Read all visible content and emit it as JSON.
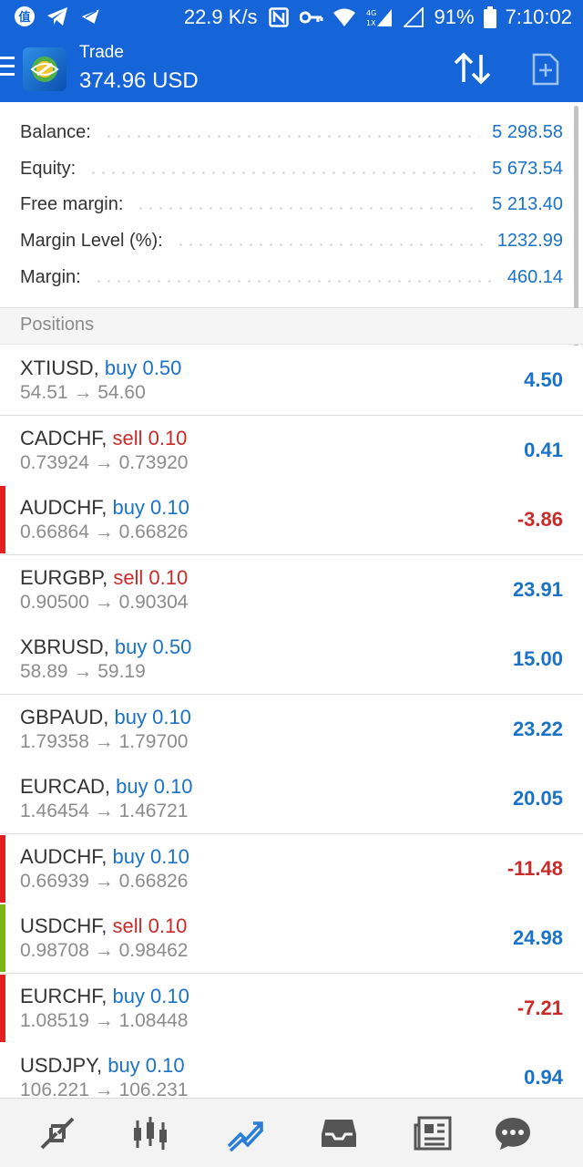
{
  "status_bar": {
    "speed": "22.9 K/s",
    "battery": "91%",
    "time": "7:10:02",
    "network_label_top": "4G",
    "network_label_bottom": "1X"
  },
  "app_bar": {
    "title": "Trade",
    "subtitle": "374.96 USD"
  },
  "summary": [
    {
      "label": "Balance:",
      "value": "5 298.58"
    },
    {
      "label": "Equity:",
      "value": "5 673.54"
    },
    {
      "label": "Free margin:",
      "value": "5 213.40"
    },
    {
      "label": "Margin Level (%):",
      "value": "1232.99"
    },
    {
      "label": "Margin:",
      "value": "460.14"
    }
  ],
  "positions_header": "Positions",
  "positions": [
    {
      "symbol": "XTIUSD,",
      "side": "buy 0.50",
      "prices": "54.51 → 54.60",
      "profit": "4.50"
    },
    {
      "symbol": "CADCHF,",
      "side": "sell 0.10",
      "prices": "0.73924 → 0.73920",
      "profit": "0.41"
    },
    {
      "symbol": "AUDCHF,",
      "side": "buy 0.10",
      "prices": "0.66864 → 0.66826",
      "profit": "-3.86"
    },
    {
      "symbol": "EURGBP,",
      "side": "sell 0.10",
      "prices": "0.90500 → 0.90304",
      "profit": "23.91"
    },
    {
      "symbol": "XBRUSD,",
      "side": "buy 0.50",
      "prices": "58.89 → 59.19",
      "profit": "15.00"
    },
    {
      "symbol": "GBPAUD,",
      "side": "buy 0.10",
      "prices": "1.79358 → 1.79700",
      "profit": "23.22"
    },
    {
      "symbol": "EURCAD,",
      "side": "buy 0.10",
      "prices": "1.46454 → 1.46721",
      "profit": "20.05"
    },
    {
      "symbol": "AUDCHF,",
      "side": "buy 0.10",
      "prices": "0.66939 → 0.66826",
      "profit": "-11.48"
    },
    {
      "symbol": "USDCHF,",
      "side": "sell 0.10",
      "prices": "0.98708 → 0.98462",
      "profit": "24.98"
    },
    {
      "symbol": "EURCHF,",
      "side": "buy 0.10",
      "prices": "1.08519 → 1.08448",
      "profit": "-7.21"
    },
    {
      "symbol": "USDJPY,",
      "side": "buy 0.10",
      "prices": "106.221 → 106.231",
      "profit": "0.94"
    }
  ],
  "colors": {
    "header_blue": "#1565d8",
    "value_blue": "#1a72c9",
    "sell_red": "#c92a2a",
    "marker_red": "#e02020",
    "marker_green": "#7cb518"
  },
  "bottom_nav": [
    {
      "icon": "quotes-icon"
    },
    {
      "icon": "chart-icon"
    },
    {
      "icon": "trade-icon"
    },
    {
      "icon": "history-icon"
    },
    {
      "icon": "news-icon"
    },
    {
      "icon": "chat-icon"
    }
  ]
}
